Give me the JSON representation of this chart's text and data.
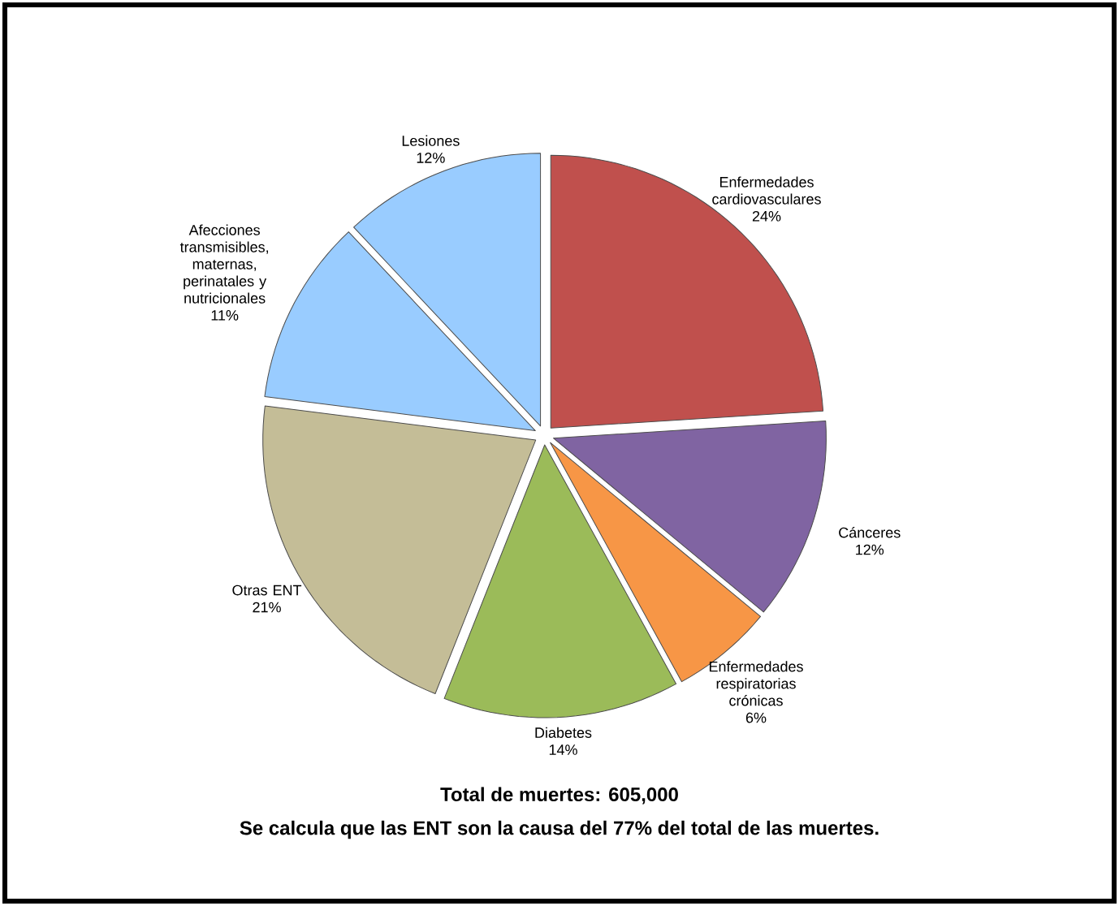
{
  "chart_data": {
    "type": "pie",
    "categories": [
      "Enfermedades cardiovasculares",
      "Cánceres",
      "Enfermedades respiratorias crónicas",
      "Diabetes",
      "Otras ENT",
      "Afecciones transmisibles, maternas, perinatales y nutricionales",
      "Lesiones"
    ],
    "values": [
      24,
      12,
      6,
      14,
      21,
      11,
      12
    ],
    "value_labels": [
      "24%",
      "12%",
      "6%",
      "14%",
      "21%",
      "11%",
      "12%"
    ],
    "colors": [
      "#c0504d",
      "#8064a2",
      "#f79646",
      "#9bbb59",
      "#c4bd97",
      "#99ccff",
      "#99ccff"
    ],
    "annotations": [
      "Total de muertes: 605,000",
      "Se calcula que las ENT son la causa del 77% del total de las muertes."
    ]
  }
}
